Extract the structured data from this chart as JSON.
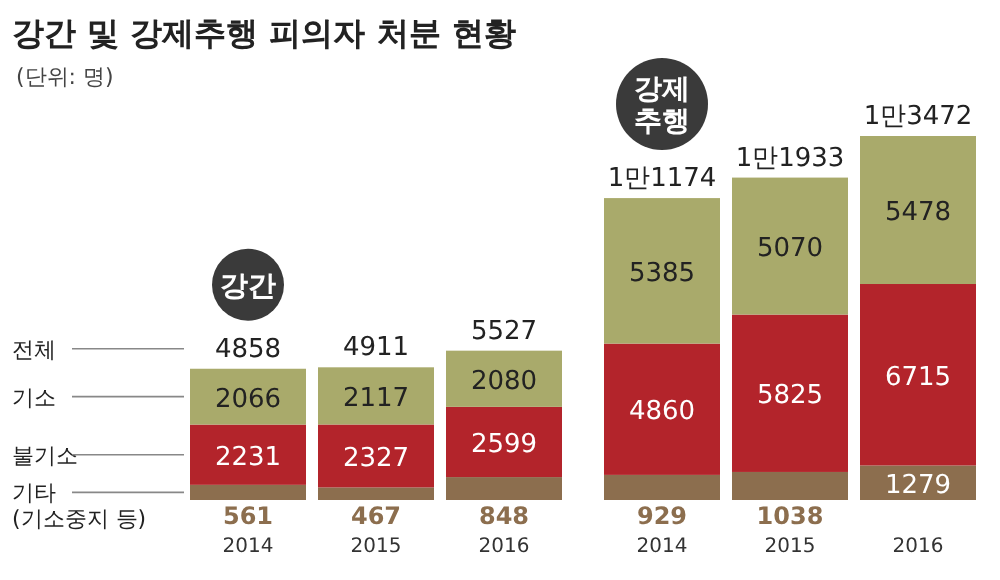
{
  "chart_data": [
    {
      "type": "bar",
      "stacked": true,
      "title": "강간 및 강제추행 피의자 처분 현황",
      "subtitle": "(단위: 명)",
      "categories": [
        "2014",
        "2015",
        "2016"
      ],
      "series": [
        {
          "name": "기타 (기소중지 등)",
          "color": "#8c6e4e",
          "values": [
            561,
            467,
            848
          ]
        },
        {
          "name": "불기소",
          "color": "#b3242b",
          "values": [
            2231,
            2327,
            2599
          ]
        },
        {
          "name": "기소",
          "color": "#a9aa6b",
          "values": [
            2066,
            2117,
            2080
          ]
        }
      ],
      "data_labels": true,
      "totals": [
        "4858",
        "4911",
        "5527"
      ],
      "annotations": [
        "강간",
        "전체"
      ]
    },
    {
      "type": "bar",
      "stacked": true,
      "categories": [
        "2014",
        "2015",
        "2016"
      ],
      "series": [
        {
          "color": "#8c6e4e",
          "values": [
            929,
            1038,
            1279
          ]
        },
        {
          "color": "#b3242b",
          "values": [
            4860,
            5825,
            6715
          ]
        },
        {
          "color": "#a9aa6b",
          "values": [
            5385,
            5070,
            5478
          ]
        }
      ],
      "data_labels": true,
      "totals": [
        "1만1174",
        "1만1933",
        "1만3472"
      ],
      "annotations": [
        "강제추행"
      ]
    }
  ]
}
